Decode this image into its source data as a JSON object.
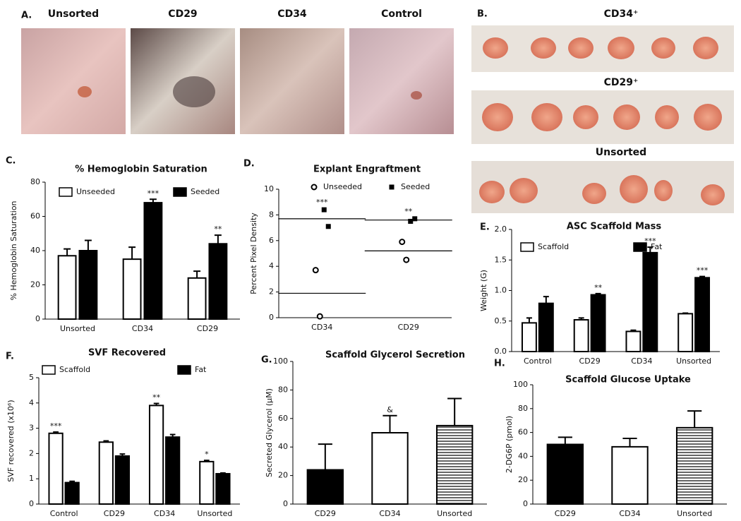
{
  "photo_panels": {
    "a": {
      "panel_label": "A.",
      "labels": [
        "Unsorted",
        "CD29",
        "CD34",
        "Control"
      ]
    },
    "b": {
      "panel_label": "B.",
      "labels": [
        "CD34⁺",
        "CD29⁺",
        "Unsorted"
      ]
    }
  },
  "chart_data": [
    {
      "type": "bar",
      "panel_label": "C.",
      "title": "% Hemoglobin Saturation",
      "y_label": "% Hemoglobin Saturation",
      "categories": [
        "Unsorted",
        "CD34",
        "CD29"
      ],
      "series": [
        {
          "name": "Unseeded",
          "color": "#ffffff",
          "values": [
            37,
            35,
            24
          ],
          "errors": [
            4,
            7,
            4
          ],
          "significance": [
            null,
            null,
            null
          ]
        },
        {
          "name": "Seeded",
          "color": "#000000",
          "values": [
            40,
            68,
            44
          ],
          "errors": [
            6,
            2,
            5
          ],
          "significance": [
            null,
            "***",
            "**"
          ]
        }
      ],
      "ylim": [
        0,
        80
      ],
      "yticks": [
        0,
        20,
        40,
        60,
        80
      ]
    },
    {
      "type": "dot",
      "panel_label": "D.",
      "title": "Explant Engraftment",
      "y_label": "Percent Pixel Density",
      "categories": [
        "CD34",
        "CD29"
      ],
      "series": [
        {
          "name": "Unseeded",
          "marker": "open-circle",
          "values": [
            [
              3.7,
              0.1
            ],
            [
              5.9,
              4.5
            ]
          ],
          "means": [
            1.9,
            5.2
          ]
        },
        {
          "name": "Seeded",
          "marker": "filled-square",
          "values": [
            [
              8.4,
              7.1
            ],
            [
              7.5,
              7.7
            ]
          ],
          "means": [
            7.7,
            7.6
          ]
        }
      ],
      "significance": [
        "***",
        "**"
      ],
      "ylim": [
        0,
        10
      ],
      "yticks": [
        0,
        2,
        4,
        6,
        8,
        10
      ]
    },
    {
      "type": "bar",
      "panel_label": "E.",
      "title": "ASC Scaffold Mass",
      "y_label": "Weight (G)",
      "categories": [
        "Control",
        "CD29",
        "CD34",
        "Unsorted"
      ],
      "series": [
        {
          "name": "Scaffold",
          "color": "#ffffff",
          "values": [
            0.47,
            0.52,
            0.33,
            0.62
          ],
          "errors": [
            0.08,
            0.03,
            0.02,
            0.01
          ],
          "significance": [
            null,
            null,
            null,
            null
          ]
        },
        {
          "name": "Fat",
          "color": "#000000",
          "values": [
            0.79,
            0.93,
            1.62,
            1.21
          ],
          "errors": [
            0.11,
            0.02,
            0.09,
            0.02
          ],
          "significance": [
            null,
            "**",
            "***",
            "***"
          ]
        }
      ],
      "ylim": [
        0,
        2
      ],
      "yticks": [
        {
          "value": 0,
          "label": "0.0"
        },
        0.5,
        {
          "value": 1,
          "label": "1.0"
        },
        1.5,
        {
          "value": 2,
          "label": "2.0"
        }
      ]
    },
    {
      "type": "bar",
      "panel_label": "F.",
      "title": "SVF Recovered",
      "y_label": "SVF recovered (x10⁶)",
      "categories": [
        "Control",
        "CD29",
        "CD34",
        "Unsorted"
      ],
      "series": [
        {
          "name": "Scaffold",
          "color": "#ffffff",
          "values": [
            2.8,
            2.45,
            3.9,
            1.68
          ],
          "errors": [
            0.05,
            0.05,
            0.08,
            0.05
          ],
          "significance": [
            "***",
            null,
            "**",
            "*"
          ]
        },
        {
          "name": "Fat",
          "color": "#000000",
          "values": [
            0.85,
            1.9,
            2.65,
            1.2
          ],
          "errors": [
            0.05,
            0.08,
            0.1,
            0.03
          ],
          "significance": [
            null,
            null,
            null,
            null
          ]
        }
      ],
      "ylim": [
        0,
        5
      ],
      "yticks": [
        0,
        1,
        2,
        3,
        4,
        5
      ]
    },
    {
      "type": "bar",
      "panel_label": "G.",
      "title": "Scaffold Glycerol Secretion",
      "y_label": "Secreted Glycerol (μM)",
      "categories": [
        "CD29",
        "CD34",
        "Unsorted"
      ],
      "series": [
        {
          "fills": [
            "solid",
            "open",
            "striped"
          ],
          "values": [
            24,
            50,
            55
          ],
          "errors": [
            18,
            12,
            19
          ],
          "significance": [
            null,
            "&",
            null
          ]
        }
      ],
      "ylim": [
        0,
        100
      ],
      "yticks": [
        0,
        20,
        40,
        60,
        80,
        100
      ]
    },
    {
      "type": "bar",
      "panel_label": "H.",
      "title": "Scaffold Glucose Uptake",
      "y_label": "2-DG6P (pmol)",
      "categories": [
        "CD29",
        "CD34",
        "Unsorted"
      ],
      "series": [
        {
          "fills": [
            "solid",
            "open",
            "striped"
          ],
          "values": [
            50,
            48,
            64
          ],
          "errors": [
            6,
            7,
            14
          ],
          "significance": [
            null,
            null,
            null
          ]
        }
      ],
      "ylim": [
        0,
        100
      ],
      "yticks": [
        0,
        20,
        40,
        60,
        80,
        100
      ]
    }
  ]
}
